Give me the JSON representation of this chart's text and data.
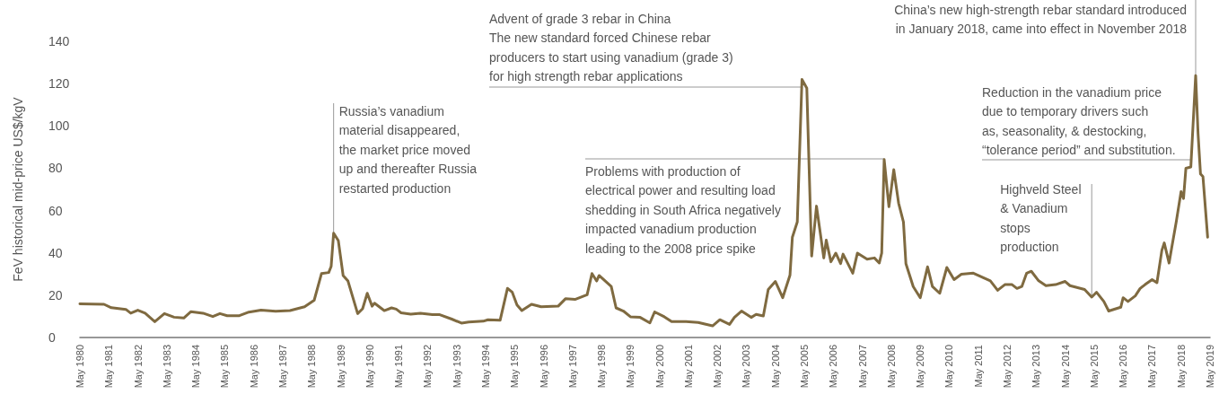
{
  "chart_data": {
    "type": "line",
    "ylabel": "FeV historical mid-price US$/kgV",
    "xlim": [
      "1980-05",
      "2019-05"
    ],
    "xticks": [
      {
        "value": "1980-05",
        "label": "May 1980"
      },
      {
        "value": "1981-05",
        "label": "May 1981"
      },
      {
        "value": "1982-05",
        "label": "May 1982"
      },
      {
        "value": "1983-05",
        "label": "May 1983"
      },
      {
        "value": "1984-05",
        "label": "May 1984"
      },
      {
        "value": "1985-05",
        "label": "May 1985"
      },
      {
        "value": "1986-05",
        "label": "May 1986"
      },
      {
        "value": "1987-05",
        "label": "May 1987"
      },
      {
        "value": "1988-05",
        "label": "May 1988"
      },
      {
        "value": "1989-05",
        "label": "May 1989"
      },
      {
        "value": "1990-05",
        "label": "May 1990"
      },
      {
        "value": "1991-05",
        "label": "May 1991"
      },
      {
        "value": "1992-05",
        "label": "May 1992"
      },
      {
        "value": "1993-05",
        "label": "May 1993"
      },
      {
        "value": "1994-05",
        "label": "May 1994"
      },
      {
        "value": "1995-05",
        "label": "May 1995"
      },
      {
        "value": "1996-05",
        "label": "May 1996"
      },
      {
        "value": "1997-05",
        "label": "May 1997"
      },
      {
        "value": "1998-05",
        "label": "May 1998"
      },
      {
        "value": "1999-05",
        "label": "May 1999"
      },
      {
        "value": "2000-05",
        "label": "May 2000"
      },
      {
        "value": "2001-05",
        "label": "May 2001"
      },
      {
        "value": "2002-05",
        "label": "May 2002"
      },
      {
        "value": "2003-05",
        "label": "May 2003"
      },
      {
        "value": "2004-05",
        "label": "May 2004"
      },
      {
        "value": "2005-05",
        "label": "May 2005"
      },
      {
        "value": "2006-05",
        "label": "May 2006"
      },
      {
        "value": "2007-05",
        "label": "May 2007"
      },
      {
        "value": "2008-05",
        "label": "May 2008"
      },
      {
        "value": "2009-05",
        "label": "May 2009"
      },
      {
        "value": "2010-05",
        "label": "May 2010"
      },
      {
        "value": "2011-05",
        "label": "May 2011"
      },
      {
        "value": "2012-05",
        "label": "May 2012"
      },
      {
        "value": "2013-05",
        "label": "May 2013"
      },
      {
        "value": "2014-05",
        "label": "May 2014"
      },
      {
        "value": "2015-05",
        "label": "May 2015"
      },
      {
        "value": "2016-05",
        "label": "May 2016"
      },
      {
        "value": "2017-05",
        "label": "May 2017"
      },
      {
        "value": "2018-05",
        "label": "May 2018"
      },
      {
        "value": "2019-05",
        "label": "May 2019"
      }
    ],
    "ylim": [
      0,
      140
    ],
    "yticks": [
      0,
      20,
      40,
      60,
      80,
      100,
      120,
      140
    ],
    "grid": false,
    "marker": "none",
    "line_style": "solid",
    "series": [
      {
        "color": "#7f6a40",
        "x": [
          "1980-05",
          "1981-03",
          "1981-06",
          "1981-12",
          "1982-02",
          "1982-05",
          "1982-08",
          "1982-12",
          "1983-04",
          "1983-08",
          "1983-12",
          "1984-03",
          "1984-08",
          "1984-12",
          "1985-03",
          "1985-06",
          "1985-11",
          "1986-03",
          "1986-08",
          "1987-02",
          "1987-08",
          "1988-02",
          "1988-06",
          "1988-09",
          "1988-12",
          "1989-01",
          "1989-02",
          "1989-04",
          "1989-06",
          "1989-08",
          "1989-12",
          "1990-02",
          "1990-04",
          "1990-06",
          "1990-07",
          "1990-11",
          "1991-02",
          "1991-04",
          "1991-06",
          "1991-10",
          "1992-02",
          "1992-07",
          "1992-10",
          "1993-03",
          "1993-07",
          "1993-10",
          "1994-04",
          "1994-06",
          "1994-11",
          "1995-02",
          "1995-04",
          "1995-06",
          "1995-08",
          "1995-12",
          "1996-04",
          "1996-11",
          "1997-02",
          "1997-06",
          "1997-11",
          "1998-01",
          "1998-03",
          "1998-04",
          "1998-09",
          "1998-11",
          "1999-02",
          "1999-05",
          "1999-09",
          "2000-01",
          "2000-03",
          "2000-07",
          "2000-10",
          "2001-04",
          "2001-09",
          "2002-03",
          "2002-06",
          "2002-10",
          "2002-12",
          "2003-03",
          "2003-07",
          "2003-09",
          "2003-12",
          "2004-02",
          "2004-05",
          "2004-08",
          "2004-11",
          "2004-12",
          "2005-02",
          "2005-04",
          "2005-06",
          "2005-08",
          "2005-10",
          "2006-01",
          "2006-02",
          "2006-04",
          "2006-06",
          "2006-08",
          "2006-09",
          "2007-01",
          "2007-03",
          "2007-07",
          "2007-10",
          "2007-12",
          "2008-01",
          "2008-02",
          "2008-04",
          "2008-06",
          "2008-08",
          "2008-10",
          "2008-11",
          "2009-02",
          "2009-05",
          "2009-08",
          "2009-10",
          "2010-01",
          "2010-04",
          "2010-07",
          "2010-10",
          "2011-03",
          "2011-10",
          "2012-01",
          "2012-04",
          "2012-07",
          "2012-09",
          "2012-11",
          "2013-01",
          "2013-03",
          "2013-06",
          "2013-09",
          "2014-01",
          "2014-05",
          "2014-07",
          "2015-01",
          "2015-04",
          "2015-06",
          "2015-09",
          "2015-11",
          "2016-04",
          "2016-05",
          "2016-07",
          "2016-10",
          "2016-12",
          "2017-02",
          "2017-05",
          "2017-07",
          "2017-09",
          "2017-10",
          "2017-12",
          "2018-01",
          "2018-03",
          "2018-05",
          "2018-06",
          "2018-07",
          "2018-09",
          "2018-11",
          "2018-12",
          "2019-01",
          "2019-02",
          "2019-04"
        ],
        "values": [
          15.9,
          15.7,
          14.1,
          13.3,
          11.5,
          12.9,
          11.5,
          7.5,
          11.3,
          9.6,
          9.2,
          12.2,
          11.5,
          9.9,
          11.3,
          10.3,
          10.3,
          12.0,
          12.9,
          12.4,
          12.7,
          14.5,
          17.6,
          30.2,
          30.7,
          33.6,
          49.3,
          45.8,
          29.3,
          26.7,
          11.3,
          13.6,
          20.9,
          14.8,
          16.2,
          12.7,
          14.0,
          13.4,
          11.7,
          11.0,
          11.5,
          10.8,
          10.8,
          8.7,
          6.8,
          7.3,
          7.7,
          8.4,
          8.2,
          23.2,
          21.5,
          15.4,
          12.7,
          15.7,
          14.5,
          14.8,
          18.3,
          18.0,
          20.2,
          30.2,
          26.7,
          29.3,
          24.1,
          14.0,
          12.5,
          9.8,
          9.5,
          6.9,
          12.1,
          9.8,
          7.5,
          7.5,
          7.1,
          5.5,
          8.4,
          6.2,
          9.5,
          12.5,
          9.5,
          10.9,
          10.2,
          22.7,
          26.5,
          18.8,
          29.5,
          47.4,
          54.6,
          122,
          117.8,
          38.5,
          62.1,
          37.6,
          46.0,
          35.8,
          39.9,
          34.9,
          39.4,
          30.4,
          39.9,
          37.0,
          37.6,
          35.2,
          39.9,
          84.1,
          61.8,
          79.3,
          63.5,
          54.6,
          34.9,
          24.1,
          18.8,
          33.4,
          24.1,
          20.9,
          33.1,
          27.4,
          29.9,
          30.4,
          26.8,
          22.3,
          25.0,
          25.0,
          23.2,
          24.1,
          30.4,
          31.3,
          26.8,
          24.5,
          25.0,
          26.5,
          24.5,
          22.7,
          19.1,
          21.4,
          17.0,
          12.5,
          14.3,
          18.8,
          17.0,
          19.7,
          23.2,
          25.0,
          27.4,
          25.9,
          41.2,
          44.7,
          35.2,
          42.0,
          54.6,
          68.9,
          65.7,
          80.0,
          80.6,
          123.8,
          96.5,
          77.3,
          76.0,
          47.4
        ]
      }
    ],
    "annotations": [
      {
        "text": "Russia’s vanadium\nmaterial disappeared,\nthe market price moved\nup and thereafter Russia\nrestarted production",
        "x": "1989-02",
        "y": 49.3
      },
      {
        "text": "Advent of grade 3 rebar in China\nThe new standard forced Chinese rebar\nproducers to start using vanadium (grade 3)\nfor high strength rebar applications",
        "x": "2005-04",
        "y": 122
      },
      {
        "text": "Problems with production of\nelectrical power and resulting load\nshedding in South Africa negatively\nimpacted vanadium production\nleading to the 2008 price spike",
        "x": "2008-02",
        "y": 84.1
      },
      {
        "text": "China’s new high-strength rebar standard introduced\nin January 2018, came into effect in November 2018",
        "x": "2018-11",
        "y": 123.8
      },
      {
        "text": "Reduction in the vanadium price\ndue to temporary drivers such\nas, seasonality, & destocking,\n“tolerance period” and substitution.",
        "x": "2018-09",
        "y": 80.6
      },
      {
        "text": "Highveld Steel\n& Vanadium\nstops\nproduction",
        "x": "2015-04",
        "y": 19.1
      }
    ]
  }
}
